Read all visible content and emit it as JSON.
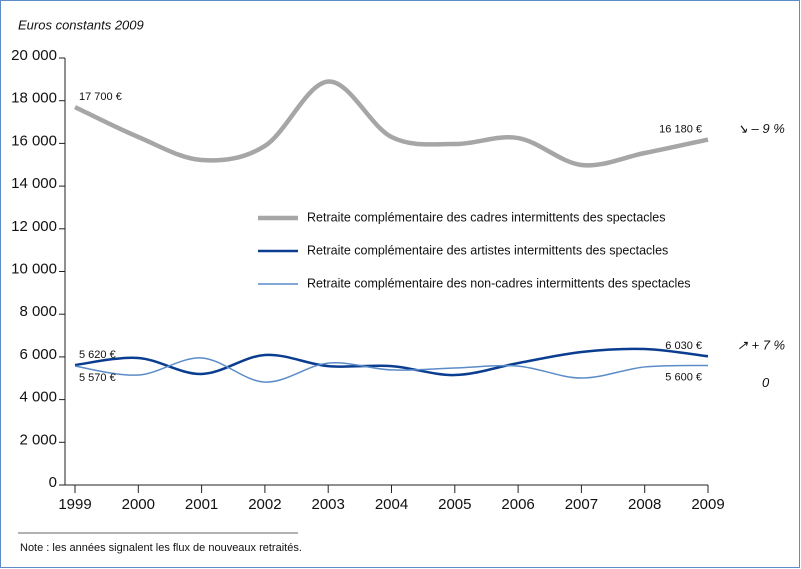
{
  "chart_data": {
    "type": "line",
    "y_label": "Euros constants 2009",
    "note": "Note : les années signalent les flux de nouveaux retraités.",
    "x": [
      1999,
      2000,
      2001,
      2002,
      2003,
      2004,
      2005,
      2006,
      2007,
      2008,
      2009
    ],
    "xlim": [
      1999,
      2009
    ],
    "xticks": [
      1999,
      2000,
      2001,
      2002,
      2003,
      2004,
      2005,
      2006,
      2007,
      2008,
      2009
    ],
    "ylim": [
      0,
      20000
    ],
    "yticks": [
      0,
      {
        "value": 2000,
        "label": "2 000"
      },
      {
        "value": 4000,
        "label": "4 000"
      },
      {
        "value": 6000,
        "label": "6 000"
      },
      {
        "value": 8000,
        "label": "8 000"
      },
      {
        "value": 10000,
        "label": "10 000"
      },
      {
        "value": 12000,
        "label": "12 000"
      },
      {
        "value": 14000,
        "label": "14 000"
      },
      {
        "value": 16000,
        "label": "16 000"
      },
      {
        "value": 18000,
        "label": "18 000"
      },
      {
        "value": 20000,
        "label": "20 000"
      }
    ],
    "grid": false,
    "series": [
      {
        "name": "Retraite complémentaire des cadres intermittents des spectacles",
        "color": "#a6a6a6",
        "width": 4.5,
        "values": [
          17700,
          16300,
          15220,
          15880,
          18900,
          16300,
          15970,
          16250,
          14990,
          15550,
          16180
        ],
        "value_labels": [
          "17 700 €",
          null,
          null,
          null,
          null,
          null,
          null,
          null,
          null,
          null,
          "16 180 €"
        ],
        "change": "↘ – 9 %"
      },
      {
        "name": "Retraite complémentaire des artistes intermittents des spectacles",
        "color": "#0a3d8f",
        "width": 2.5,
        "values": [
          5620,
          5950,
          5200,
          6090,
          5570,
          5570,
          5150,
          5710,
          6230,
          6370,
          6030
        ],
        "value_labels": [
          "5 620 €",
          null,
          null,
          null,
          null,
          null,
          null,
          null,
          null,
          null,
          "6 030 €"
        ],
        "change": "↗ + 7 %"
      },
      {
        "name": "Retraite complémentaire des non-cadres intermittents des spectacles",
        "color": "#5b8cc8",
        "width": 1.5,
        "values": [
          5570,
          5150,
          5950,
          4820,
          5710,
          5390,
          5480,
          5570,
          5010,
          5530,
          5600
        ],
        "value_labels": [
          "5 570 €",
          null,
          null,
          null,
          null,
          null,
          null,
          null,
          null,
          null,
          "5 600 €"
        ],
        "change": "0"
      }
    ]
  }
}
